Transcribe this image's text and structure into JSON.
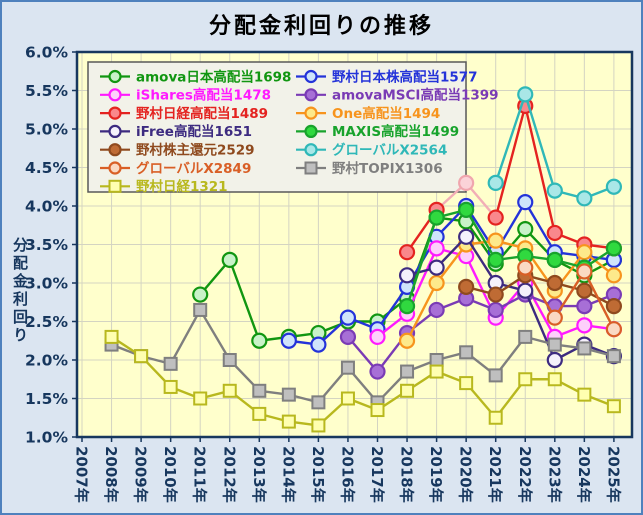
{
  "title": "分配金利回りの推移",
  "y_axis": {
    "label": "分配金利回り",
    "ticks": [
      "6.0%",
      "5.5%",
      "5.0%",
      "4.5%",
      "4.0%",
      "3.5%",
      "3.0%",
      "2.5%",
      "2.0%",
      "1.5%",
      "1.0%"
    ],
    "min": 1.0,
    "max": 6.0,
    "step": 0.5
  },
  "x_axis": {
    "labels": [
      "2007年",
      "2008年",
      "2009年",
      "2010年",
      "2011年",
      "2012年",
      "2013年",
      "2014年",
      "2015年",
      "2016年",
      "2017年",
      "2018年",
      "2019年",
      "2020年",
      "2021年",
      "2022年",
      "2023年",
      "2024年",
      "2025年"
    ]
  },
  "colors": {
    "page_bg": "#dbe5f1",
    "frame_border": "#4f81bd",
    "plot_bg": "#ffffcc",
    "grid": "#d4d4c2",
    "plot_border": "#17375e",
    "axis_text": "#17375e",
    "title_text": "#000000",
    "legend_bg": "#f2f2e9",
    "legend_border": "#595959"
  },
  "chart_data": {
    "type": "line",
    "x_years": [
      2007,
      2008,
      2009,
      2010,
      2011,
      2012,
      2013,
      2014,
      2015,
      2016,
      2017,
      2018,
      2019,
      2020,
      2021,
      2022,
      2023,
      2024,
      2025
    ],
    "y_unit": "%",
    "ylim": [
      1.0,
      6.0
    ],
    "grid": true,
    "legend_position": "top-left-inside",
    "series": [
      {
        "id": "1698",
        "name": "amova日本高配当1698",
        "color": "#119611",
        "fill": "#c9f2c9",
        "marker": "circle",
        "values": [
          null,
          null,
          null,
          null,
          2.85,
          3.3,
          2.25,
          2.3,
          2.35,
          2.5,
          2.5,
          2.8,
          3.85,
          3.8,
          3.25,
          3.7,
          3.3,
          3.1,
          3.3
        ]
      },
      {
        "id": "1577",
        "name": "野村日本株高配当1577",
        "color": "#2433d9",
        "fill": "#cfe4fb",
        "marker": "circle",
        "values": [
          null,
          null,
          null,
          null,
          null,
          null,
          null,
          2.25,
          2.2,
          2.55,
          2.4,
          2.95,
          3.6,
          4.0,
          3.4,
          4.05,
          3.4,
          3.35,
          3.3
        ]
      },
      {
        "id": "1478",
        "name": "iShares高配当1478",
        "color": "#ff1aff",
        "fill": "#fdd0fb",
        "marker": "circle",
        "values": [
          null,
          null,
          null,
          null,
          null,
          null,
          null,
          null,
          null,
          null,
          2.3,
          2.6,
          3.45,
          3.35,
          2.55,
          3.0,
          2.3,
          2.45,
          2.4
        ]
      },
      {
        "id": "1399",
        "name": "amovaMSCI高配当1399",
        "color": "#7a3bb5",
        "fill": "#a76fd6",
        "marker": "circle",
        "values": [
          null,
          null,
          null,
          null,
          null,
          null,
          null,
          null,
          null,
          2.3,
          1.85,
          2.35,
          2.65,
          2.8,
          2.65,
          2.85,
          2.7,
          2.7,
          2.85
        ]
      },
      {
        "id": "1489",
        "name": "野村日経高配当1489",
        "color": "#e42320",
        "fill": "#f9888c",
        "marker": "circle",
        "values": [
          null,
          null,
          null,
          null,
          null,
          null,
          null,
          null,
          null,
          null,
          null,
          3.4,
          3.95,
          4.3,
          3.85,
          5.3,
          3.65,
          3.5,
          3.45
        ]
      },
      {
        "id": "1494",
        "name": "One高配当1494",
        "color": "#f7941d",
        "fill": "#fde98b",
        "marker": "circle",
        "values": [
          null,
          null,
          null,
          null,
          null,
          null,
          null,
          null,
          null,
          null,
          null,
          2.25,
          3.0,
          3.5,
          3.55,
          3.45,
          2.9,
          3.4,
          3.1
        ]
      },
      {
        "id": "1651",
        "name": "iFree高配当1651",
        "color": "#3d2b80",
        "fill": "#f5f1fb",
        "marker": "circle",
        "values": [
          null,
          null,
          null,
          null,
          null,
          null,
          null,
          null,
          null,
          null,
          null,
          3.1,
          3.2,
          3.6,
          3.0,
          2.9,
          2.0,
          2.2,
          2.05
        ]
      },
      {
        "id": "1499",
        "name": "MAXIS高配当1499",
        "color": "#18a32c",
        "fill": "#30d93f",
        "marker": "circle",
        "values": [
          null,
          null,
          null,
          null,
          null,
          null,
          null,
          null,
          null,
          null,
          null,
          2.7,
          3.85,
          3.95,
          3.3,
          3.35,
          3.3,
          3.2,
          3.45
        ]
      },
      {
        "id": "2529",
        "name": "野村株主還元2529",
        "color": "#8f4a1e",
        "fill": "#bf6b34",
        "marker": "circle",
        "values": [
          null,
          null,
          null,
          null,
          null,
          null,
          null,
          null,
          null,
          null,
          null,
          null,
          null,
          2.95,
          2.85,
          3.1,
          3.0,
          2.9,
          2.7
        ]
      },
      {
        "id": "2564",
        "name": "グローバルX2564",
        "color": "#2fb8b8",
        "fill": "#a9e7e7",
        "marker": "circle",
        "values": [
          null,
          null,
          null,
          null,
          null,
          null,
          null,
          null,
          null,
          null,
          null,
          null,
          null,
          null,
          4.3,
          5.45,
          4.2,
          4.1,
          4.25
        ]
      },
      {
        "id": "2849",
        "name": "グローバルX2849",
        "color": "#d95f26",
        "fill": "#fad9c3",
        "marker": "circle",
        "values": [
          null,
          null,
          null,
          null,
          null,
          null,
          null,
          null,
          null,
          null,
          null,
          null,
          null,
          null,
          null,
          3.2,
          2.55,
          3.15,
          2.4
        ]
      },
      {
        "id": "1306",
        "name": "野村TOPIX1306",
        "color": "#7f7f7f",
        "fill": "#bfbfbf",
        "marker": "square",
        "values": [
          null,
          2.2,
          2.05,
          1.95,
          2.65,
          2.0,
          1.6,
          1.55,
          1.45,
          1.9,
          1.45,
          1.85,
          2.0,
          2.1,
          1.8,
          2.3,
          2.2,
          2.15,
          2.05
        ]
      },
      {
        "id": "1321",
        "name": "野村日経1321",
        "color": "#b8b81e",
        "fill": "#ffffb0",
        "marker": "square",
        "values": [
          null,
          2.3,
          2.05,
          1.65,
          1.5,
          1.6,
          1.3,
          1.2,
          1.15,
          1.5,
          1.35,
          1.6,
          1.85,
          1.7,
          1.25,
          1.75,
          1.75,
          1.55,
          1.4
        ]
      }
    ],
    "pale_point": {
      "series_id": "1489",
      "year": 2020,
      "line_color": "#f2aeb6",
      "fill": "#fbd3d8",
      "stroke": "#f0a6ae",
      "note": "2020 point of 野村日経高配当1489 drawn in pale pink"
    }
  },
  "legend": {
    "column_series_indices": [
      [
        0,
        2,
        4,
        6,
        8,
        10,
        12
      ],
      [
        1,
        3,
        5,
        7,
        9,
        11
      ]
    ]
  }
}
